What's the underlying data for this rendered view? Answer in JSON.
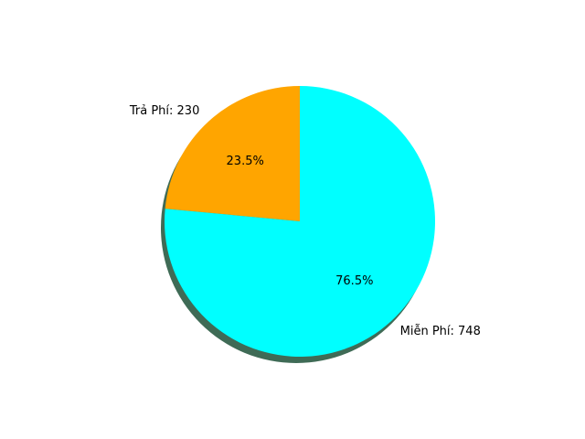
{
  "chart_data": {
    "type": "pie",
    "slices": [
      {
        "label": "Trả Phí",
        "value": 230,
        "percent": 23.5,
        "display_label": "Trả Phí: 230",
        "percent_label": "23.5%",
        "color": "#FFA500"
      },
      {
        "label": "Miễn Phí",
        "value": 748,
        "percent": 76.5,
        "display_label": "Miễn Phí: 748",
        "percent_label": "76.5%",
        "color": "#00FFFF"
      }
    ],
    "start_angle_deg": 90,
    "direction": "counterclockwise",
    "shadow": true,
    "shadow_color": "#3f6b56"
  }
}
